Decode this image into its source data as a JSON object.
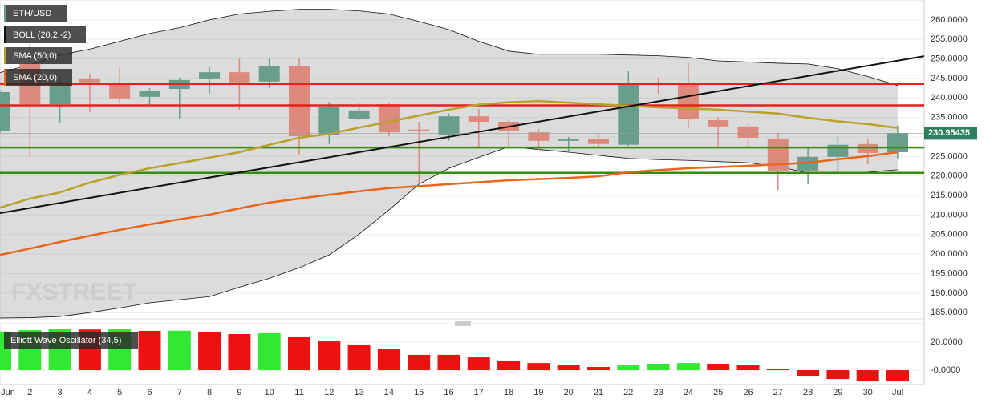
{
  "chart_data": [
    {
      "type": "candlestick",
      "title": "ETH/USD",
      "watermark": "FXSTREET",
      "categories": [
        "Jun",
        "2",
        "3",
        "4",
        "5",
        "6",
        "7",
        "8",
        "9",
        "10",
        "11",
        "12",
        "13",
        "14",
        "15",
        "16",
        "17",
        "18",
        "19",
        "20",
        "21",
        "22",
        "23",
        "24",
        "25",
        "26",
        "27",
        "28",
        "29",
        "30",
        "Jul"
      ],
      "open": [
        231.6,
        248.7,
        238.4,
        245,
        243.6,
        240.3,
        242.3,
        245,
        246.6,
        244.2,
        248.1,
        230.6,
        234.7,
        238.4,
        231.9,
        230.6,
        235.3,
        233.9,
        231.2,
        229,
        229.4,
        228,
        243.8,
        243.6,
        234.3,
        232.7,
        229.6,
        221.4,
        224.9,
        228.2,
        226.1
      ],
      "high": [
        242,
        253.8,
        245.6,
        246.2,
        247.9,
        242.5,
        245.2,
        247.9,
        250.1,
        250.3,
        250.3,
        239,
        238.8,
        238.8,
        233.9,
        236,
        237.2,
        234.7,
        232.1,
        230,
        230.8,
        246.8,
        245.2,
        248.9,
        235.1,
        233.7,
        231,
        227.3,
        230,
        229.6,
        232.9
      ],
      "low": [
        231,
        224.7,
        233.7,
        236.4,
        238.8,
        238.2,
        234.7,
        241.1,
        237,
        242.5,
        225.5,
        228.2,
        234.3,
        230.2,
        218.3,
        229,
        227.5,
        227.3,
        226.7,
        225.9,
        227.3,
        227.7,
        241.1,
        232.3,
        227.7,
        227.5,
        216.4,
        217.9,
        221.4,
        223,
        224.5
      ],
      "close": [
        241.5,
        238.4,
        244,
        244,
        239.9,
        241.9,
        244.6,
        246.6,
        244,
        248.1,
        230.2,
        237.8,
        236.8,
        231.2,
        231.5,
        235.3,
        233.9,
        231.6,
        229,
        229.4,
        228.2,
        243.6,
        243.4,
        234.7,
        232.7,
        229.8,
        221.4,
        224.9,
        228,
        225.9,
        230.95
      ],
      "up_color": "#6a9e8c",
      "down_color": "#dc8a7d",
      "ylim": [
        183.4,
        265.1
      ],
      "yticks": [
        {
          "value": 185,
          "label": "185.0000"
        },
        {
          "value": 190,
          "label": "190.0000"
        },
        {
          "value": 195,
          "label": "195.0000"
        },
        {
          "value": 200,
          "label": "200.0000"
        },
        {
          "value": 205,
          "label": "205.0000"
        },
        {
          "value": 210,
          "label": "210.0000"
        },
        {
          "value": 215,
          "label": "215.0000"
        },
        {
          "value": 220,
          "label": "220.0000"
        },
        {
          "value": 225,
          "label": "225.0000"
        },
        {
          "value": 230,
          "label": "230.0000"
        },
        {
          "value": 235,
          "label": "235.0000"
        },
        {
          "value": 240,
          "label": "240.0000"
        },
        {
          "value": 245,
          "label": "245.0000"
        },
        {
          "value": 250,
          "label": "250.0000"
        },
        {
          "value": 255,
          "label": "255.0000"
        },
        {
          "value": 260,
          "label": "260.0000"
        }
      ],
      "grid": true,
      "bands": {
        "name": "BOLL (20,2,-2)",
        "color": "#111111",
        "upper": [
          246.5,
          248.5,
          251,
          252.5,
          254.5,
          256.5,
          258,
          260,
          261.5,
          262.2,
          262.7,
          262.7,
          262.3,
          261.5,
          259.6,
          257.5,
          254.5,
          252,
          251.2,
          251.2,
          251.2,
          251,
          250.8,
          250.4,
          249.5,
          249.2,
          248.9,
          248.7,
          247.5,
          245.5,
          243.2
        ],
        "lower": [
          183.6,
          183.7,
          184,
          185,
          186.2,
          187.5,
          188.3,
          189.1,
          191.5,
          193.8,
          196.5,
          199.8,
          205.1,
          211.3,
          217.9,
          222,
          224.8,
          227.5,
          226.8,
          226.1,
          225.3,
          224.5,
          224.2,
          224,
          223.7,
          223.4,
          222.4,
          220.8,
          220.6,
          221,
          221.6
        ]
      },
      "series": [
        {
          "name": "SMA (50,0)",
          "color": "#b8a22c",
          "values": [
            211.9,
            214.2,
            215.8,
            218.3,
            220.3,
            222,
            223.3,
            224.7,
            226.1,
            228,
            229.8,
            230.8,
            232.4,
            233.9,
            235.5,
            237,
            238.3,
            238.9,
            239.2,
            238.8,
            238.4,
            238,
            237.6,
            237.3,
            237,
            236.5,
            236,
            234.9,
            234,
            233.3,
            232.3
          ]
        },
        {
          "name": "SMA (20,0)",
          "color": "#e8651a",
          "values": [
            199.8,
            201.4,
            203.1,
            204.7,
            206.2,
            207.6,
            208.9,
            210.1,
            211.7,
            213.2,
            214.2,
            215.2,
            216.1,
            216.9,
            217.4,
            217.9,
            218.4,
            218.9,
            219.2,
            219.5,
            219.9,
            221,
            221.5,
            222,
            222.3,
            222.6,
            223,
            223.4,
            224.3,
            225.1,
            226.1
          ]
        }
      ],
      "hlines": [
        {
          "value": 243.6,
          "color": "#e8201c"
        },
        {
          "value": 238.1,
          "color": "#e8201c"
        },
        {
          "value": 227.3,
          "color": "#3a8a12"
        },
        {
          "value": 220.8,
          "color": "#3a8a12"
        }
      ],
      "trendline": {
        "start": 210.5,
        "end": 250.7,
        "color": "#111111"
      },
      "last_price": {
        "value": 230.95435,
        "label": "230.95435",
        "color": "#2c7f5c"
      }
    },
    {
      "type": "bar",
      "title": "Elliott Wave Oscillator (34,5)",
      "values": [
        27.5,
        28.6,
        29.1,
        29,
        29.1,
        28,
        28.1,
        26.9,
        25.7,
        26.3,
        24,
        21.1,
        18.3,
        14.9,
        10.9,
        10.9,
        9.1,
        6.9,
        5.1,
        4,
        2.3,
        3.4,
        4.6,
        5.1,
        4.6,
        4,
        0.6,
        -4,
        -6.3,
        -8,
        -8
      ],
      "colors": [
        "#33e833",
        "#33e833",
        "#33e833",
        "#ee1111",
        "#33e833",
        "#ee1111",
        "#33e833",
        "#ee1111",
        "#ee1111",
        "#33e833",
        "#ee1111",
        "#ee1111",
        "#ee1111",
        "#ee1111",
        "#ee1111",
        "#ee1111",
        "#ee1111",
        "#ee1111",
        "#ee1111",
        "#ee1111",
        "#ee1111",
        "#33e833",
        "#33e833",
        "#33e833",
        "#ee1111",
        "#ee1111",
        "#ee1111",
        "#ee1111",
        "#ee1111",
        "#ee1111",
        "#ee1111"
      ],
      "ylim": [
        -9.1,
        33.1
      ],
      "yticks": [
        {
          "value": 20,
          "label": "20.0000"
        },
        {
          "value": 0,
          "label": "-0.0000"
        }
      ],
      "grid": true
    }
  ]
}
